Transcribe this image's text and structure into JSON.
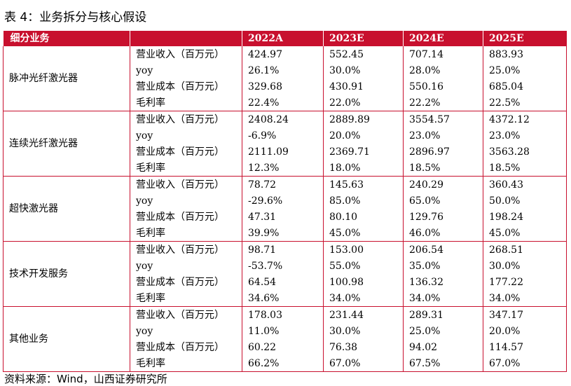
{
  "title": "表 4：业务拆分与核心假设",
  "table": {
    "headers": [
      "细分业务",
      "",
      "2022A",
      "2023E",
      "2024E",
      "2025E"
    ],
    "groups": [
      {
        "segment": "脉冲光纤激光器",
        "rows": [
          {
            "item": "营业收入（百万元）",
            "values": [
              "424.97",
              "552.45",
              "707.14",
              "883.93"
            ]
          },
          {
            "item": "yoy",
            "values": [
              "26.1%",
              "30.0%",
              "28.0%",
              "25.0%"
            ]
          },
          {
            "item": "营业成本（百万元）",
            "values": [
              "329.68",
              "430.91",
              "550.16",
              "685.04"
            ]
          },
          {
            "item": "毛利率",
            "values": [
              "22.4%",
              "22.0%",
              "22.2%",
              "22.5%"
            ]
          }
        ]
      },
      {
        "segment": "连续光纤激光器",
        "rows": [
          {
            "item": "营业收入（百万元）",
            "values": [
              "2408.24",
              "2889.89",
              "3554.57",
              "4372.12"
            ]
          },
          {
            "item": "yoy",
            "values": [
              "-6.9%",
              "20.0%",
              "23.0%",
              "23.0%"
            ]
          },
          {
            "item": "营业成本（百万元）",
            "values": [
              "2111.09",
              "2369.71",
              "2896.97",
              "3563.28"
            ]
          },
          {
            "item": "毛利率",
            "values": [
              "12.3%",
              "18.0%",
              "18.5%",
              "18.5%"
            ]
          }
        ]
      },
      {
        "segment": "超快激光器",
        "rows": [
          {
            "item": "营业收入（百万元）",
            "values": [
              "78.72",
              "145.63",
              "240.29",
              "360.43"
            ]
          },
          {
            "item": "yoy",
            "values": [
              "-29.6%",
              "85.0%",
              "65.0%",
              "50.0%"
            ]
          },
          {
            "item": "营业成本（百万元）",
            "values": [
              "47.31",
              "80.10",
              "129.76",
              "198.24"
            ]
          },
          {
            "item": "毛利率",
            "values": [
              "39.9%",
              "45.0%",
              "46.0%",
              "45.0%"
            ]
          }
        ]
      },
      {
        "segment": "技术开发服务",
        "rows": [
          {
            "item": "营业收入（百万元）",
            "values": [
              "98.71",
              "153.00",
              "206.54",
              "268.51"
            ]
          },
          {
            "item": "yoy",
            "values": [
              "-53.7%",
              "55.0%",
              "35.0%",
              "30.0%"
            ]
          },
          {
            "item": "营业成本（百万元）",
            "values": [
              "64.54",
              "100.98",
              "136.32",
              "177.22"
            ]
          },
          {
            "item": "毛利率",
            "values": [
              "34.6%",
              "34.0%",
              "34.0%",
              "34.0%"
            ]
          }
        ]
      },
      {
        "segment": "其他业务",
        "rows": [
          {
            "item": "营业收入（百万元）",
            "values": [
              "178.03",
              "231.44",
              "289.31",
              "347.17"
            ]
          },
          {
            "item": "yoy",
            "values": [
              "11.0%",
              "30.0%",
              "25.0%",
              "20.0%"
            ]
          },
          {
            "item": "营业成本（百万元）",
            "values": [
              "60.22",
              "76.38",
              "94.02",
              "114.57"
            ]
          },
          {
            "item": "毛利率",
            "values": [
              "66.2%",
              "67.0%",
              "67.5%",
              "67.0%"
            ]
          }
        ]
      }
    ]
  },
  "source": "资料来源：Wind，山西证券研究所",
  "colors": {
    "header_bg": "#c8102e",
    "border": "#c8102e",
    "header_text": "#ffffff"
  }
}
